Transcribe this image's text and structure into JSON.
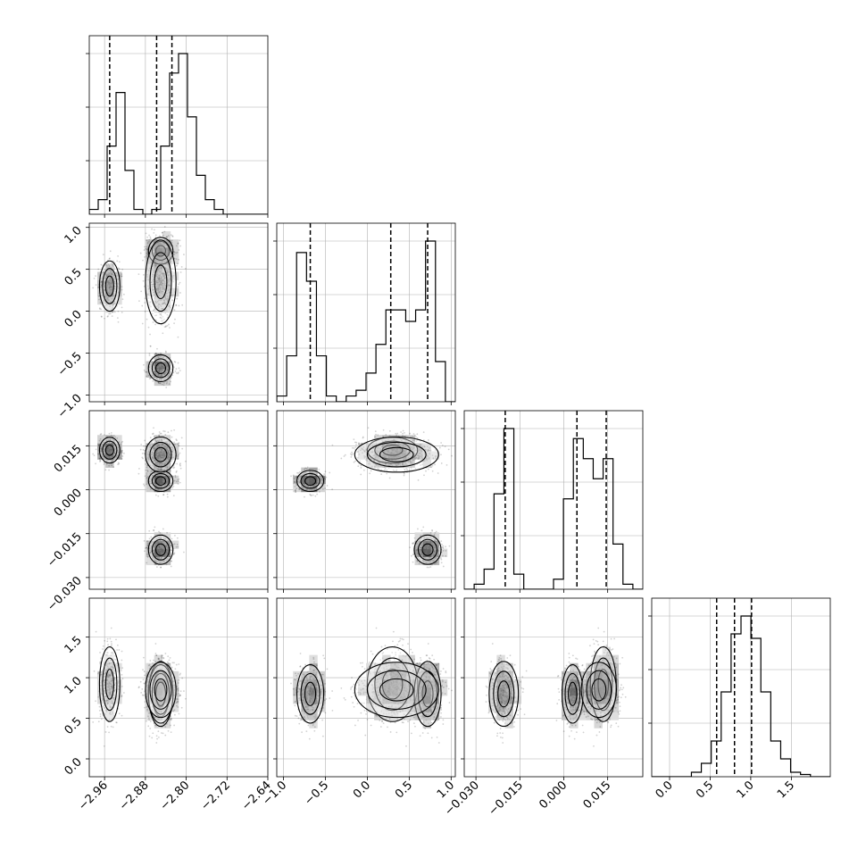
{
  "chart_data": {
    "type": "corner",
    "grid": true,
    "params": [
      {
        "range": [
          -2.99,
          -2.64
        ],
        "ticks": [
          {
            "v": -2.96,
            "label": "−2.96"
          },
          {
            "v": -2.88,
            "label": "−2.88"
          },
          {
            "v": -2.8,
            "label": "−2.80"
          },
          {
            "v": -2.72,
            "label": "−2.72"
          },
          {
            "v": -2.64,
            "label": "−2.64"
          }
        ],
        "quantiles": [
          -2.95,
          -2.858,
          -2.828
        ],
        "hist": [
          1,
          3,
          14,
          25,
          9,
          1,
          0,
          1,
          14,
          29,
          33,
          20,
          8,
          3,
          1,
          0,
          0,
          0,
          0,
          0
        ]
      },
      {
        "range": [
          -1.08,
          1.05
        ],
        "ticks": [
          {
            "v": -1.0,
            "label": "−1.0"
          },
          {
            "v": -0.5,
            "label": "−0.5"
          },
          {
            "v": 0.0,
            "label": "0.0"
          },
          {
            "v": 0.5,
            "label": "0.5"
          },
          {
            "v": 1.0,
            "label": "1.0"
          }
        ],
        "quantiles": [
          -0.68,
          0.28,
          0.72
        ],
        "hist": [
          1,
          8,
          26,
          21,
          8,
          1,
          0,
          1,
          2,
          5,
          10,
          16,
          16,
          14,
          16,
          28,
          7,
          0
        ]
      },
      {
        "range": [
          -0.034,
          0.027
        ],
        "ticks": [
          {
            "v": -0.03,
            "label": "−0.030"
          },
          {
            "v": -0.015,
            "label": "−0.015"
          },
          {
            "v": 0.0,
            "label": "0.000"
          },
          {
            "v": 0.015,
            "label": "0.015"
          }
        ],
        "quantiles": [
          -0.02,
          0.0045,
          0.0145
        ],
        "hist": [
          0,
          1,
          4,
          19,
          32,
          3,
          0,
          0,
          0,
          2,
          18,
          30,
          26,
          22,
          26,
          9,
          1,
          0
        ]
      },
      {
        "range": [
          -0.22,
          1.98
        ],
        "ticks": [
          {
            "v": 0.0,
            "label": "0.0"
          },
          {
            "v": 0.5,
            "label": "0.5"
          },
          {
            "v": 1.0,
            "label": "1.0"
          },
          {
            "v": 1.5,
            "label": "1.5"
          }
        ],
        "quantiles": [
          0.58,
          0.8,
          1.01
        ],
        "hist": [
          0,
          0,
          0,
          0,
          1,
          3,
          8,
          19,
          32,
          36,
          31,
          19,
          8,
          4,
          1,
          0.5,
          0,
          0
        ]
      }
    ],
    "modes": [
      {
        "w": 0.22,
        "mean": [
          -2.95,
          0.3,
          0.0135,
          0.92
        ],
        "sd": [
          0.01,
          0.15,
          0.0022,
          0.23
        ]
      },
      {
        "w": 0.26,
        "mean": [
          -2.85,
          0.72,
          -0.0205,
          0.8
        ],
        "sd": [
          0.012,
          0.08,
          0.0025,
          0.2
        ]
      },
      {
        "w": 0.22,
        "mean": [
          -2.85,
          -0.68,
          0.003,
          0.8
        ],
        "sd": [
          0.012,
          0.08,
          0.0018,
          0.18
        ]
      },
      {
        "w": 0.3,
        "mean": [
          -2.85,
          0.35,
          0.012,
          0.85
        ],
        "sd": [
          0.015,
          0.25,
          0.003,
          0.17
        ]
      }
    ]
  }
}
